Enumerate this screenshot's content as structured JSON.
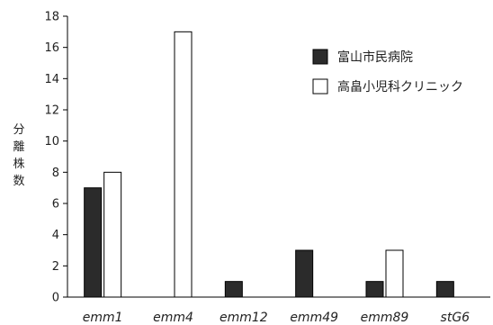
{
  "chart_data": {
    "type": "bar",
    "categories": [
      "emm1",
      "emm4",
      "emm12",
      "emm49",
      "emm89",
      "stG6"
    ],
    "series": [
      {
        "name": "富山市民病院",
        "values": [
          7,
          0,
          1,
          3,
          1,
          1
        ],
        "fill": "#2b2b2b",
        "stroke": "#000000"
      },
      {
        "name": "高畠小児科クリニック",
        "values": [
          8,
          17,
          0,
          0,
          3,
          0
        ],
        "fill": "#ffffff",
        "stroke": "#000000"
      }
    ],
    "ylabel": "分離株数",
    "ylim": [
      0,
      18
    ],
    "yticks": [
      0,
      2,
      4,
      6,
      8,
      10,
      12,
      14,
      16,
      18
    ],
    "grid": false,
    "legend_position": "top-right"
  }
}
